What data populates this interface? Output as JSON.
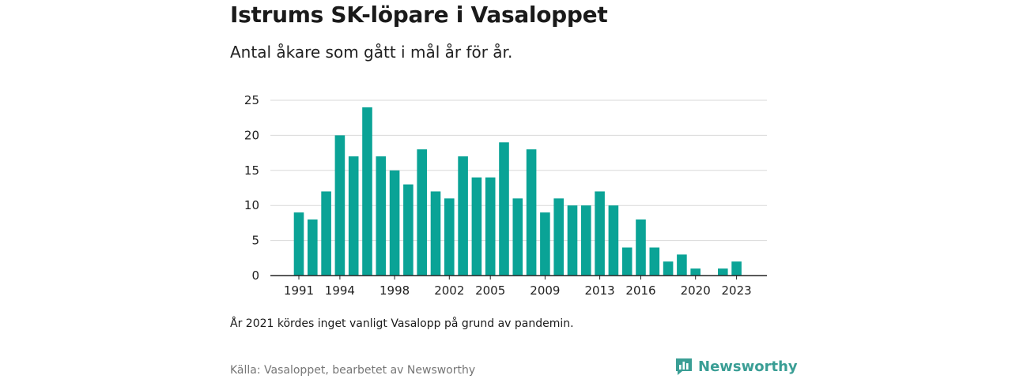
{
  "title": "Istrums SK-löpare i Vasaloppet",
  "subtitle": "Antal åkare som gått i mål år för år.",
  "note": "År 2021 kördes inget vanligt Vasalopp på grund av pandemin.",
  "source": "Källa: Vasaloppet, bearbetet av Newsworthy",
  "brand": {
    "name": "Newsworthy",
    "icon": "newsworthy-logo-icon"
  },
  "colors": {
    "bar": "#0aa396",
    "grid": "#d9d9d9",
    "axis": "#222222",
    "brand": "#3a9e95"
  },
  "chart_data": {
    "type": "bar",
    "title": "Istrums SK-löpare i Vasaloppet",
    "subtitle": "Antal åkare som gått i mål år för år.",
    "xlabel": "",
    "ylabel": "",
    "categories": [
      1991,
      1992,
      1993,
      1994,
      1995,
      1996,
      1997,
      1998,
      1999,
      2000,
      2001,
      2002,
      2003,
      2004,
      2005,
      2006,
      2007,
      2008,
      2009,
      2010,
      2011,
      2012,
      2013,
      2014,
      2015,
      2016,
      2017,
      2018,
      2019,
      2020,
      2021,
      2022,
      2023
    ],
    "values": [
      9,
      8,
      12,
      20,
      17,
      24,
      17,
      15,
      13,
      18,
      12,
      11,
      17,
      14,
      14,
      19,
      11,
      18,
      9,
      11,
      10,
      10,
      12,
      10,
      4,
      8,
      4,
      2,
      3,
      1,
      0,
      1,
      2
    ],
    "x_tick_labels": [
      "1991",
      "1994",
      "1998",
      "2002",
      "2005",
      "2009",
      "2013",
      "2016",
      "2020",
      "2023"
    ],
    "ylim": [
      0,
      25
    ],
    "y_ticks": [
      0,
      5,
      10,
      15,
      20,
      25
    ],
    "grid": true
  }
}
